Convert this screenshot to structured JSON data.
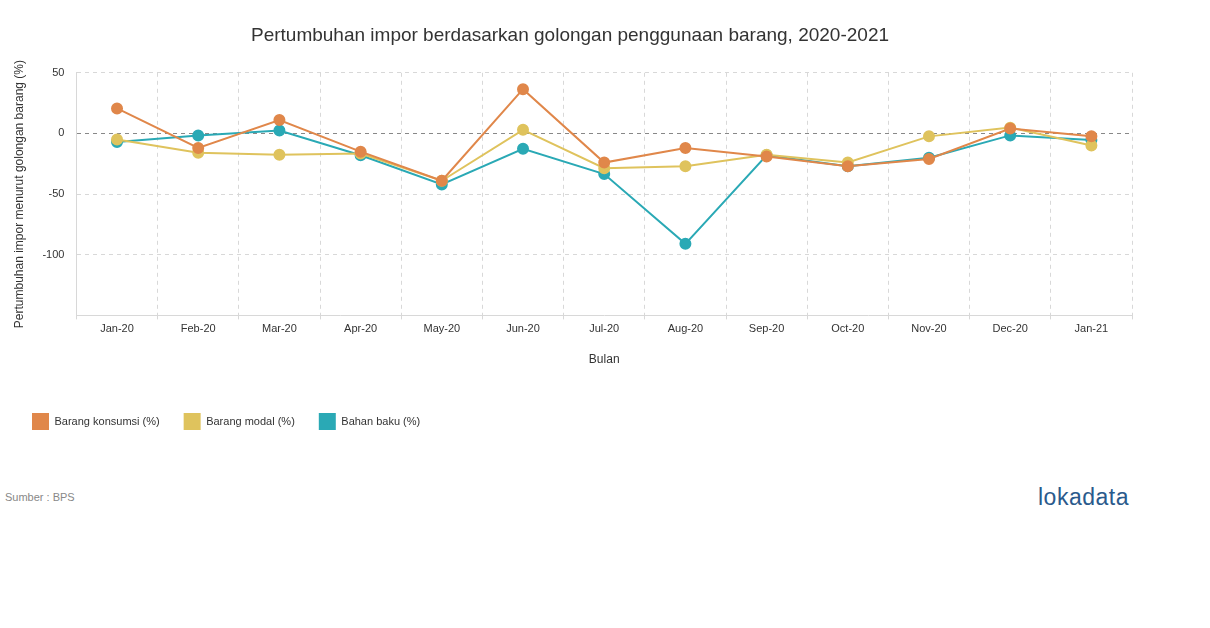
{
  "chart_data": {
    "type": "line",
    "title": "Pertumbuhan impor berdasarkan golongan penggunaan barang, 2020-2021",
    "x_label": "Bulan",
    "y_label": "Pertumbuhan impor menurut golongan barang (%)",
    "categories": [
      "Jan-20",
      "Feb-20",
      "Mar-20",
      "Apr-20",
      "May-20",
      "Jun-20",
      "Jul-20",
      "Aug-20",
      "Sep-20",
      "Oct-20",
      "Nov-20",
      "Dec-20",
      "Jan-21"
    ],
    "series": [
      {
        "name": "Barang konsumsi (%)",
        "color": "#e0874a",
        "marker": "circle",
        "values": [
          20.6,
          -12,
          11,
          -15,
          -39,
          36.5,
          -24,
          -12,
          -19,
          -27,
          -21,
          4,
          -2.4
        ]
      },
      {
        "name": "Barang modal (%)",
        "color": "#dfc35d",
        "marker": "circle",
        "values": [
          -5,
          -16,
          -17.5,
          -16.5,
          -39,
          3,
          -28.6,
          -27,
          -17.5,
          -24,
          -2.4,
          4.8,
          -10
        ]
      },
      {
        "name": "Bahan baku (%)",
        "color": "#2aa9b5",
        "marker": "circle",
        "values": [
          -7,
          -1.6,
          2.4,
          -18,
          -42,
          -12.7,
          -33.5,
          -91,
          -18,
          -27,
          -20,
          -1.6,
          -5.5
        ]
      }
    ],
    "ylim": [
      -150,
      50
    ],
    "yticks": [
      -100,
      -50,
      0,
      50
    ],
    "grid": true,
    "legend": "bottom-left",
    "annotations": [
      "Sumber : BPS",
      "lokadata"
    ]
  }
}
